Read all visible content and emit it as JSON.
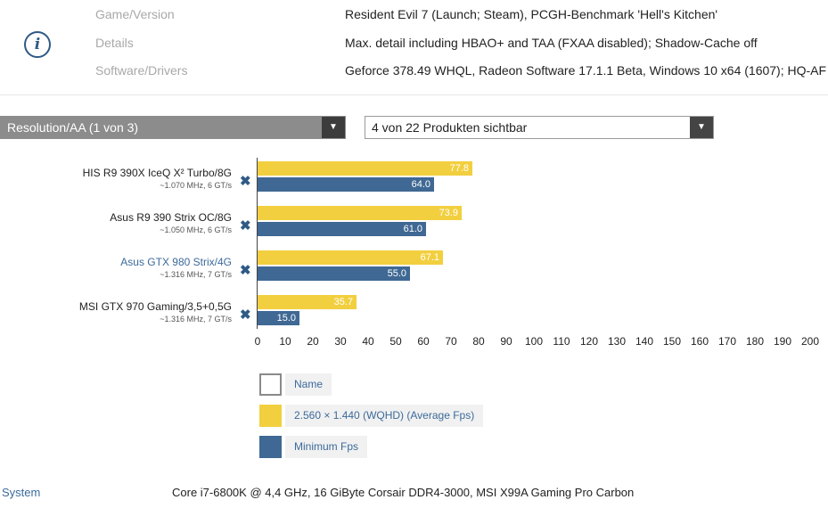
{
  "info": {
    "rows": [
      {
        "label": "Game/Version",
        "value": "Resident Evil 7 (Launch; Steam), PCGH-Benchmark 'Hell's Kitchen'"
      },
      {
        "label": "Details",
        "value": "Max. detail including HBAO+ and TAA (FXAA disabled); Shadow-Cache off"
      },
      {
        "label": "Software/Drivers",
        "value": "Geforce 378.49 WHQL, Radeon Software 17.1.1 Beta, Windows 10 x64 (1607); HQ-AF"
      }
    ],
    "icon": "info-icon",
    "icon_glyph": "i"
  },
  "controls": {
    "resolution_select": "Resolution/AA (1 von 3)",
    "products_select": "4 von 22 Produkten sichtbar",
    "arrow_glyph": "▼",
    "remove_glyph": "✖"
  },
  "chart_data": {
    "type": "bar",
    "orientation": "horizontal",
    "categories": [
      {
        "name": "HIS R9 390X IceQ X² Turbo/8G",
        "spec": "~1.070 MHz, 6 GT/s",
        "highlight": false
      },
      {
        "name": "Asus R9 390 Strix OC/8G",
        "spec": "~1.050 MHz, 6 GT/s",
        "highlight": false
      },
      {
        "name": "Asus GTX 980 Strix/4G",
        "spec": "~1.316 MHz, 7 GT/s",
        "highlight": true
      },
      {
        "name": "MSI GTX 970 Gaming/3,5+0,5G",
        "spec": "~1.316 MHz, 7 GT/s",
        "highlight": false
      }
    ],
    "series": [
      {
        "name": "2.560 × 1.440 (WQHD) (Average Fps)",
        "color": "#f2cf3f",
        "values": [
          77.8,
          73.9,
          67.1,
          35.7
        ],
        "labels": [
          "77.8",
          "73.9",
          "67.1",
          "35.7"
        ]
      },
      {
        "name": "Minimum Fps",
        "color": "#3f6894",
        "values": [
          64.0,
          61.0,
          55.0,
          15.0
        ],
        "labels": [
          "64.0",
          "61.0",
          "55.0",
          "15.0"
        ]
      }
    ],
    "xlim": [
      0,
      200
    ],
    "xticks": [
      "0",
      "10",
      "20",
      "30",
      "40",
      "50",
      "60",
      "70",
      "80",
      "90",
      "100",
      "110",
      "120",
      "130",
      "140",
      "150",
      "160",
      "170",
      "180",
      "190",
      "200"
    ],
    "legend_placement": "bottom-left"
  },
  "legend": {
    "items": [
      {
        "label": "Name",
        "color": "#ffffff"
      },
      {
        "label": "2.560 × 1.440 (WQHD) (Average Fps)",
        "color": "#f2cf3f"
      },
      {
        "label": "Minimum Fps",
        "color": "#3f6894"
      }
    ]
  },
  "footer": {
    "label": "System",
    "value": "Core i7-6800K @ 4,4 GHz, 16 GiByte Corsair DDR4-3000, MSI X99A Gaming Pro Carbon"
  }
}
